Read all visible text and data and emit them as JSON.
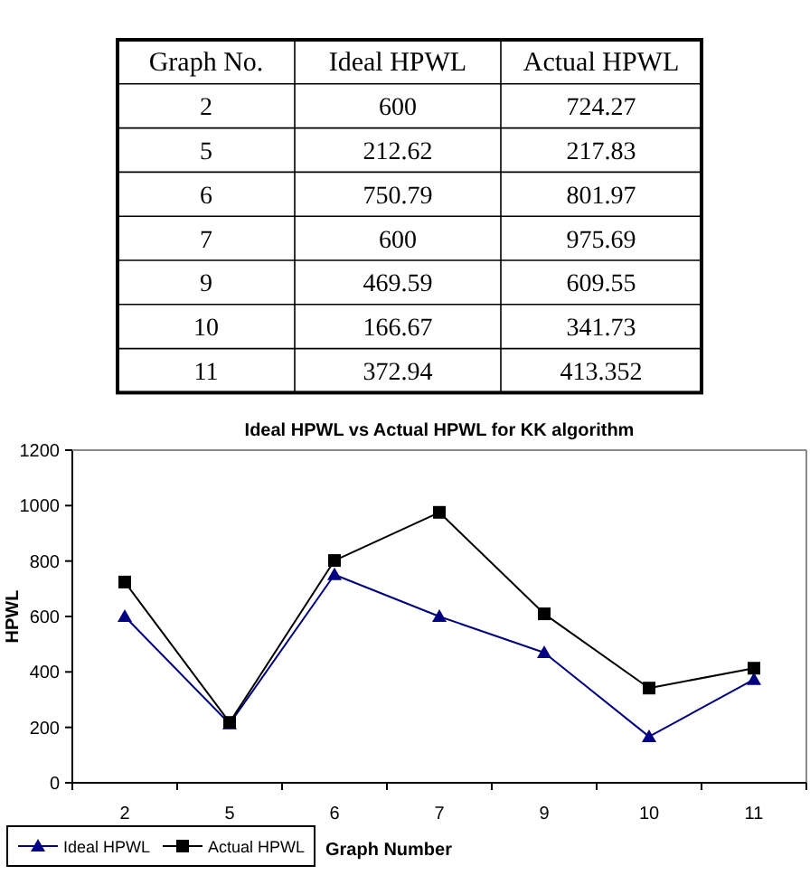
{
  "chart_data": [
    {
      "type": "other",
      "annotations": [
        "Graph No."
      ],
      "categories": [
        "2",
        "5",
        "6",
        "7",
        "9",
        "10",
        "11"
      ],
      "series": [
        {
          "name": "Ideal HPWL",
          "values": [
            600,
            212.62,
            750.79,
            600,
            469.59,
            166.67,
            372.94
          ]
        },
        {
          "name": "Actual HPWL",
          "values": [
            724.27,
            217.83,
            801.97,
            975.69,
            609.55,
            341.73,
            413.352
          ]
        }
      ],
      "data_labels": true
    },
    {
      "type": "line",
      "title": "Ideal HPWL vs Actual HPWL for KK algorithm",
      "xlabel": "Graph Number",
      "ylabel": "HPWL",
      "categories": [
        "2",
        "5",
        "6",
        "7",
        "9",
        "10",
        "11"
      ],
      "series": [
        {
          "name": "Ideal HPWL",
          "color": "#000080",
          "marker": "triangle",
          "values": [
            600,
            212.62,
            750.79,
            600,
            469.59,
            166.67,
            372.94
          ]
        },
        {
          "name": "Actual HPWL",
          "color": "#000000",
          "marker": "square",
          "values": [
            724.27,
            217.83,
            801.97,
            975.69,
            609.55,
            341.73,
            413.352
          ]
        }
      ],
      "ylim": [
        0,
        1200
      ],
      "yticks": [
        0,
        200,
        400,
        600,
        800,
        1000,
        1200
      ],
      "legend": "bottom left"
    }
  ]
}
